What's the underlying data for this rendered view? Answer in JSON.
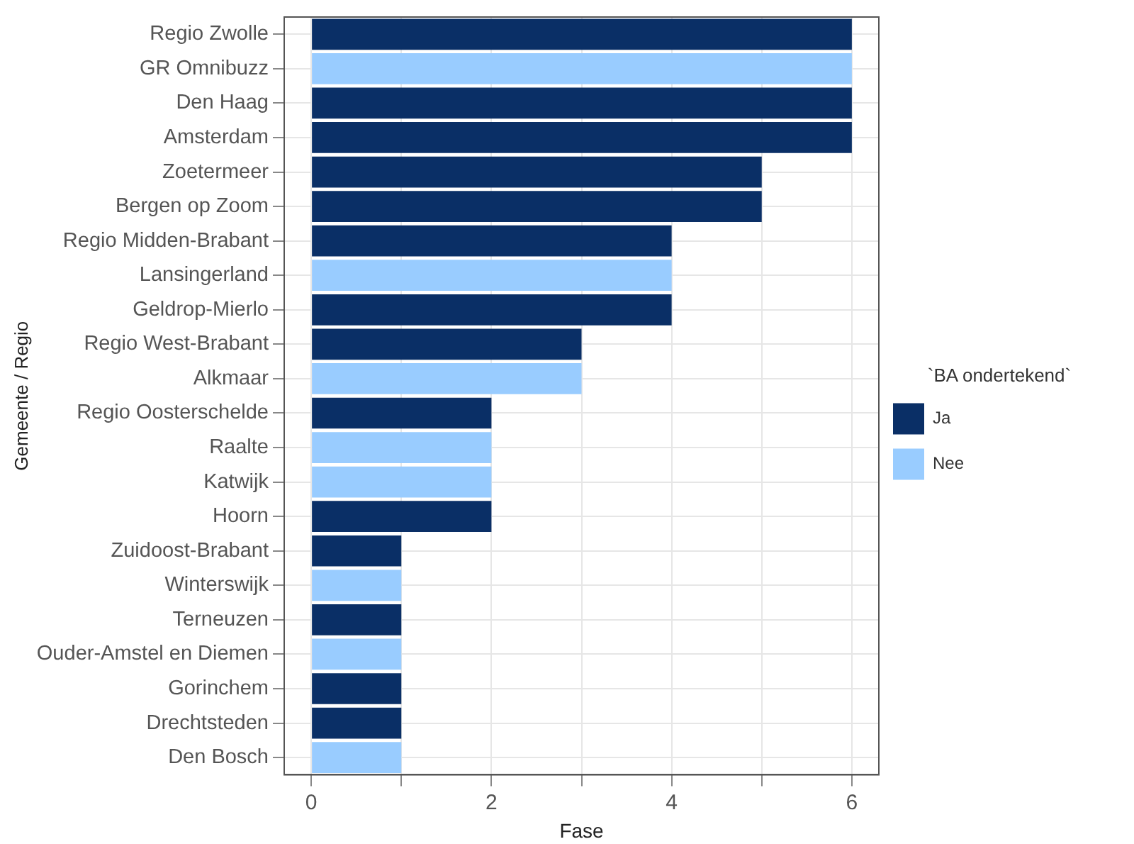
{
  "chart_data": {
    "type": "bar",
    "orientation": "horizontal",
    "stacked": true,
    "xlabel": "Fase",
    "ylabel": "Gemeente / Regio",
    "legend_title": "`BA ondertekend`",
    "legend": "right",
    "grid": true,
    "categories": [
      "Regio Zwolle",
      "GR Omnibuzz",
      "Den Haag",
      "Amsterdam",
      "Zoetermeer",
      "Bergen op Zoom",
      "Regio Midden-Brabant",
      "Lansingerland",
      "Geldrop-Mierlo",
      "Regio West-Brabant",
      "Alkmaar",
      "Regio Oosterschelde",
      "Raalte",
      "Katwijk",
      "Hoorn",
      "Zuidoost-Brabant",
      "Winterswijk",
      "Terneuzen",
      "Ouder-Amstel en Diemen",
      "Gorinchem",
      "Drechtsteden",
      "Den Bosch"
    ],
    "series": [
      {
        "name": "Ja",
        "color": "#0a2f66",
        "values": [
          6,
          null,
          6,
          6,
          5,
          5,
          4,
          null,
          4,
          3,
          null,
          2,
          null,
          null,
          2,
          1,
          null,
          1,
          null,
          1,
          1,
          null
        ]
      },
      {
        "name": "Nee",
        "color": "#99ccff",
        "values": [
          null,
          6,
          null,
          null,
          null,
          null,
          null,
          4,
          null,
          null,
          3,
          null,
          2,
          2,
          null,
          null,
          1,
          null,
          1,
          null,
          null,
          1
        ]
      }
    ],
    "xlim": [
      -0.3,
      6.3
    ],
    "xticks": [
      0,
      {
        "value": 1,
        "label": null
      },
      2,
      {
        "value": 3,
        "label": null
      },
      4,
      {
        "value": 5,
        "label": null
      },
      6
    ]
  }
}
